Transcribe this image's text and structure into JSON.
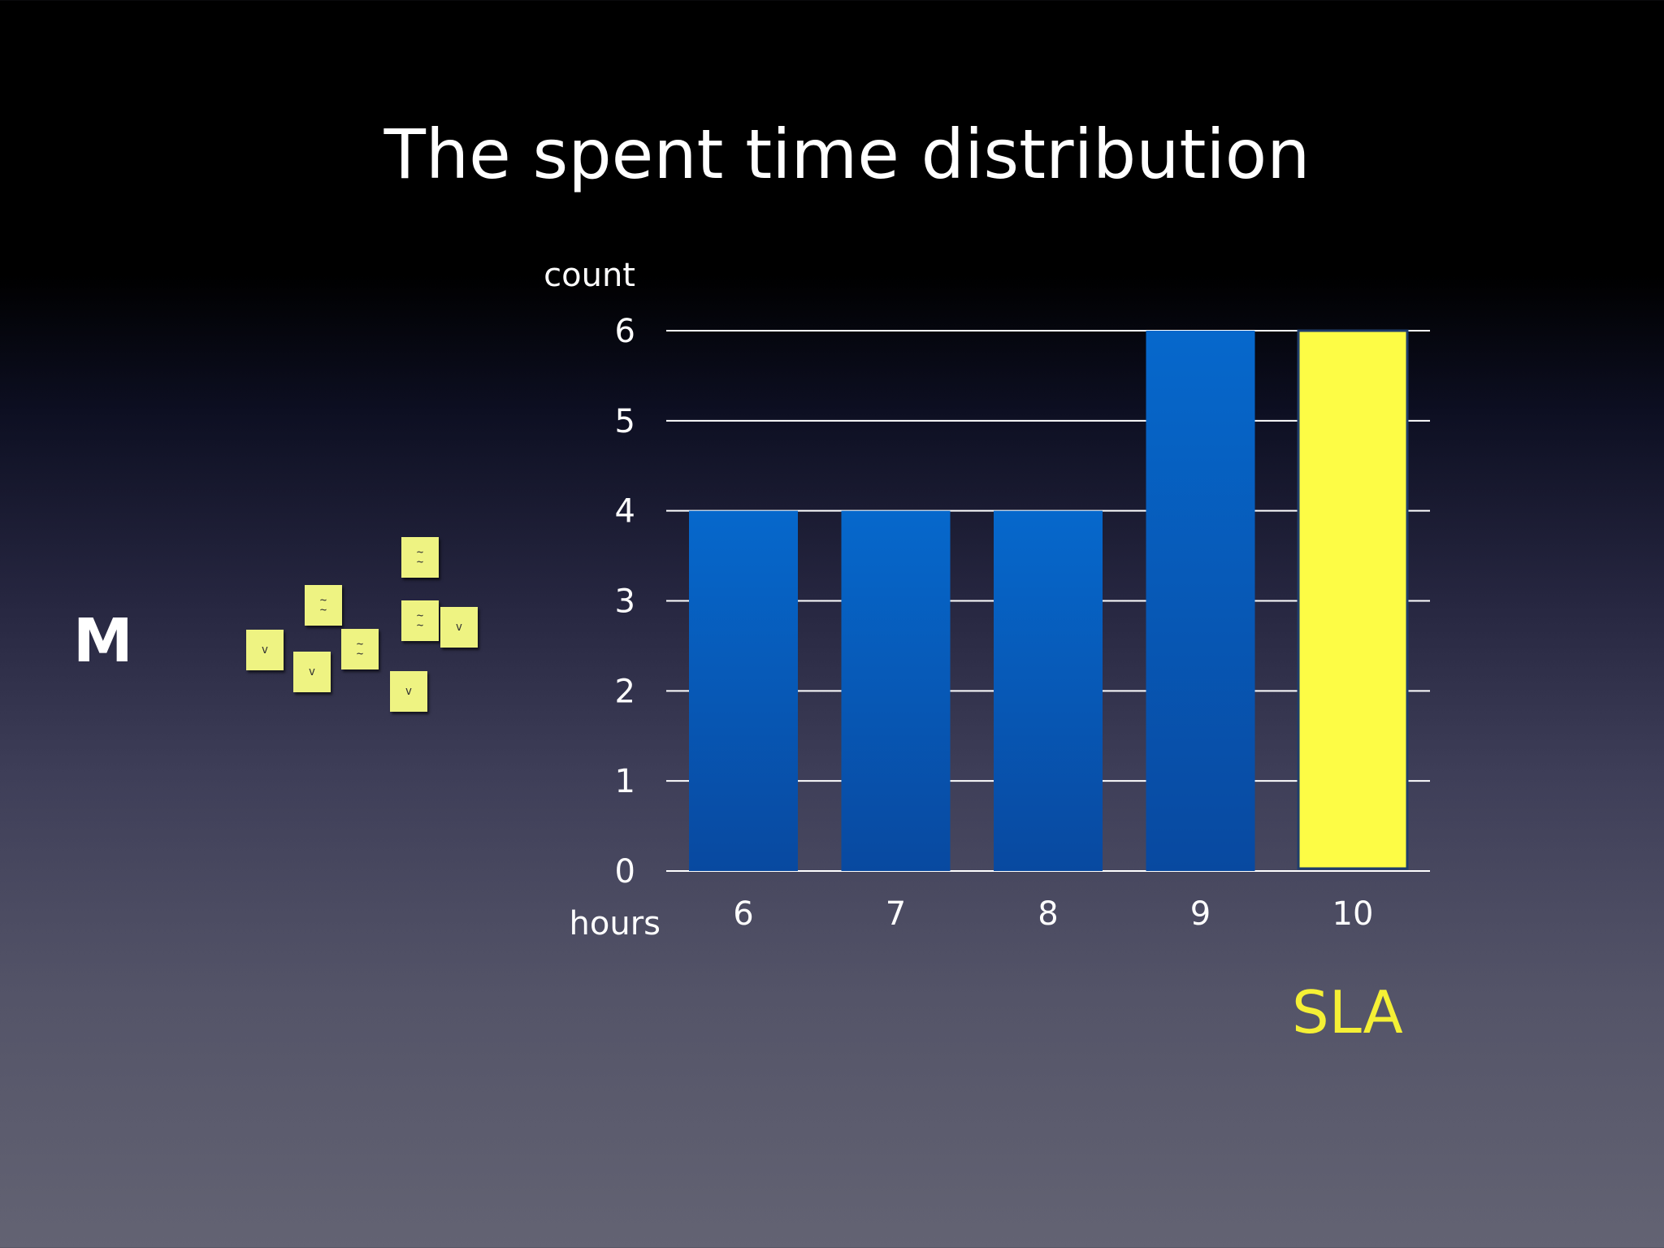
{
  "slide": {
    "title": "The spent time distribution",
    "side_label": "M",
    "sla_label": "SLA",
    "notes": [
      {
        "mark": "~\n~"
      },
      {
        "mark": "~\n~"
      },
      {
        "mark": "~\n~"
      },
      {
        "mark": "~\n~"
      },
      {
        "mark": "v"
      },
      {
        "mark": "v"
      },
      {
        "mark": "v"
      },
      {
        "mark": "v"
      }
    ]
  },
  "chart_data": {
    "type": "bar",
    "title": "The spent time distribution",
    "xlabel": "hours",
    "ylabel": "count",
    "categories": [
      "6",
      "7",
      "8",
      "9",
      "10"
    ],
    "values": [
      4,
      4,
      4,
      6,
      6
    ],
    "ylim": [
      0,
      6
    ],
    "yticks": [
      "0",
      "1",
      "2",
      "3",
      "4",
      "5",
      "6"
    ],
    "grid": true,
    "colors": {
      "bar": "#0563c4",
      "bar_highlight": "#fdfc45",
      "grid": "#ffffff",
      "text": "#ffffff"
    },
    "highlight": {
      "category": "10",
      "label": "SLA"
    }
  }
}
